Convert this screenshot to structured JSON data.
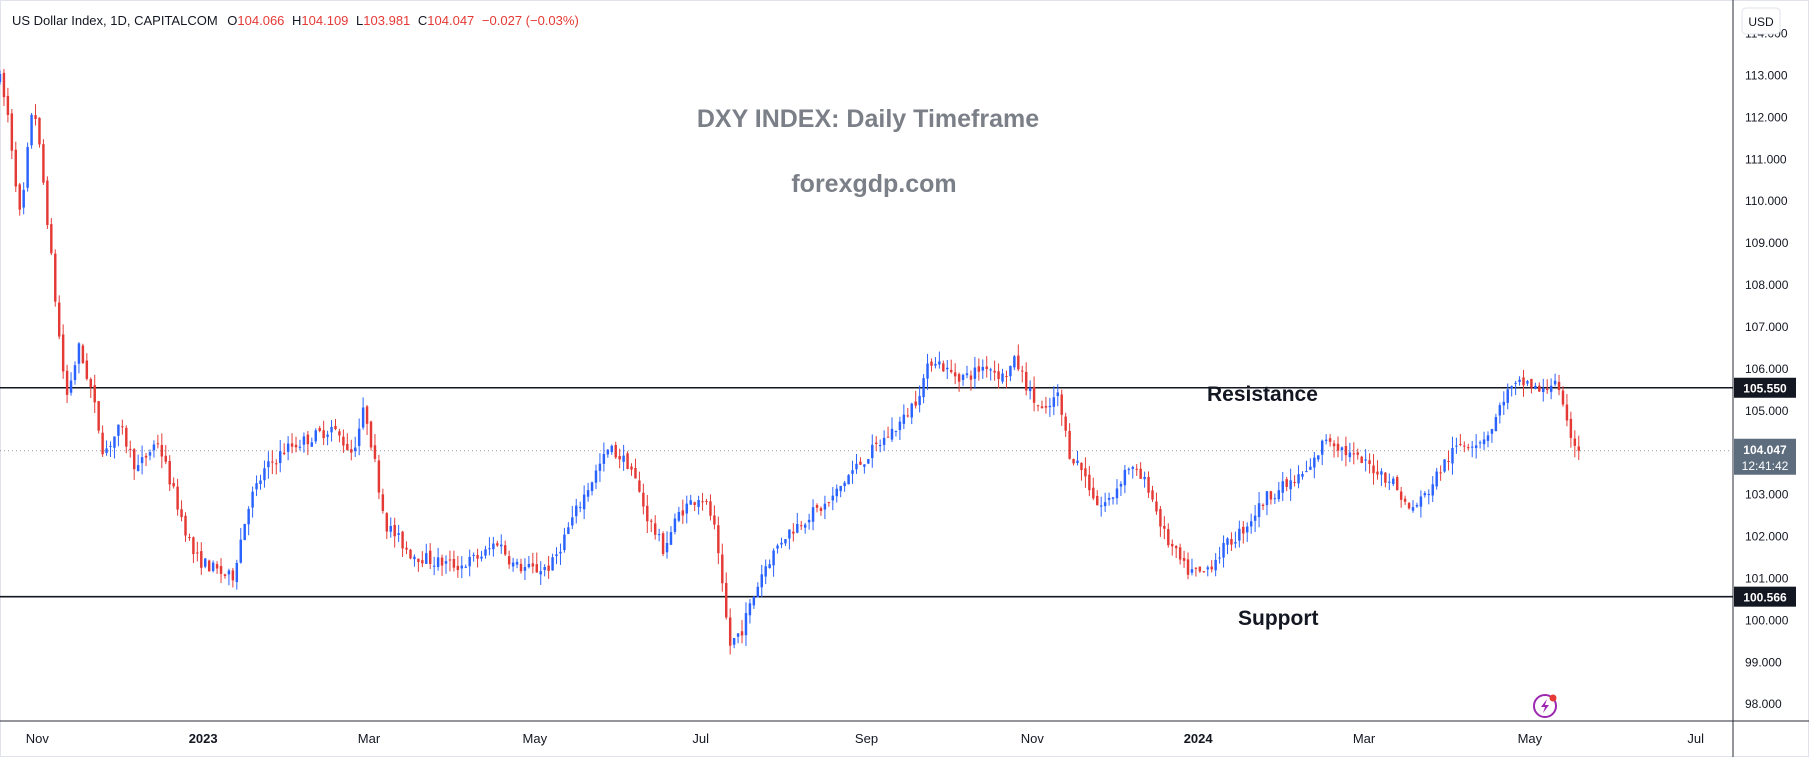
{
  "header": {
    "symbol": "US Dollar Index, 1D, CAPITALCOM",
    "o_label": "O",
    "o_value": "104.066",
    "h_label": "H",
    "h_value": "104.109",
    "l_label": "L",
    "l_value": "103.981",
    "c_label": "C",
    "c_value": "104.047",
    "change": "−0.027 (−0.03%)"
  },
  "currency_button": "USD",
  "watermark": {
    "title": "DXY INDEX: Daily Timeframe",
    "site": "forexgdp.com"
  },
  "annotations": {
    "resistance": "Resistance",
    "support": "Support"
  },
  "price_badge": {
    "price": "104.047",
    "countdown": "12:41:42"
  },
  "colors": {
    "up": "#2962ff",
    "down": "#e53935",
    "badge": "#5d6d7e",
    "level_badge": "#131722"
  },
  "icons": {
    "alert": "lightning-icon"
  },
  "chart_data": {
    "type": "candlestick",
    "title": "DXY INDEX: Daily Timeframe",
    "ylim": [
      97.6,
      114.8
    ],
    "y_ticks": [
      "98.000",
      "99.000",
      "100.000",
      "101.000",
      "102.000",
      "103.000",
      "104.000",
      "105.000",
      "106.000",
      "107.000",
      "108.000",
      "109.000",
      "110.000",
      "111.000",
      "112.000",
      "113.000",
      "114.000"
    ],
    "y_tick_values": [
      98,
      99,
      100,
      101,
      102,
      103,
      104,
      105,
      106,
      107,
      108,
      109,
      110,
      111,
      112,
      113,
      114
    ],
    "x_ticks": [
      "Nov",
      "2023",
      "Mar",
      "May",
      "Jul",
      "Sep",
      "Nov",
      "2024",
      "Mar",
      "May",
      "Jul"
    ],
    "x_tick_bold": [
      false,
      true,
      false,
      false,
      false,
      false,
      false,
      true,
      false,
      false,
      false
    ],
    "x_tick_months": [
      0,
      2,
      4,
      6,
      8,
      10,
      12,
      14,
      16,
      18,
      20
    ],
    "x_range_months": [
      -0.45,
      20.45
    ],
    "last_candle_month": 18.6,
    "levels": [
      {
        "name": "Resistance",
        "value": 105.55,
        "label": "105.550"
      },
      {
        "name": "Support",
        "value": 100.566,
        "label": "100.566"
      }
    ],
    "current_price": 104.047,
    "anchors": [
      [
        -0.45,
        112.9
      ],
      [
        -0.35,
        112.0
      ],
      [
        -0.2,
        109.5
      ],
      [
        -0.05,
        112.5
      ],
      [
        0.1,
        110.0
      ],
      [
        0.25,
        107.0
      ],
      [
        0.35,
        105.3
      ],
      [
        0.5,
        106.5
      ],
      [
        0.65,
        105.5
      ],
      [
        0.8,
        104.0
      ],
      [
        1.0,
        104.6
      ],
      [
        1.2,
        103.6
      ],
      [
        1.45,
        104.3
      ],
      [
        1.7,
        102.7
      ],
      [
        1.9,
        101.5
      ],
      [
        2.15,
        101.2
      ],
      [
        2.35,
        101.0
      ],
      [
        2.55,
        102.8
      ],
      [
        2.75,
        103.6
      ],
      [
        3.0,
        104.1
      ],
      [
        3.35,
        104.4
      ],
      [
        3.55,
        104.6
      ],
      [
        3.8,
        104.0
      ],
      [
        3.95,
        105.1
      ],
      [
        4.2,
        102.3
      ],
      [
        4.5,
        101.6
      ],
      [
        4.8,
        101.4
      ],
      [
        5.1,
        101.3
      ],
      [
        5.4,
        101.6
      ],
      [
        5.55,
        101.9
      ],
      [
        5.75,
        101.3
      ],
      [
        6.0,
        101.2
      ],
      [
        6.2,
        101.3
      ],
      [
        6.45,
        102.4
      ],
      [
        6.7,
        103.4
      ],
      [
        6.9,
        104.1
      ],
      [
        7.15,
        103.7
      ],
      [
        7.35,
        102.5
      ],
      [
        7.55,
        101.7
      ],
      [
        7.75,
        102.6
      ],
      [
        8.0,
        103.0
      ],
      [
        8.15,
        102.4
      ],
      [
        8.35,
        99.4
      ],
      [
        8.5,
        99.8
      ],
      [
        8.75,
        101.2
      ],
      [
        9.0,
        102.0
      ],
      [
        9.3,
        102.5
      ],
      [
        9.55,
        102.8
      ],
      [
        9.8,
        103.5
      ],
      [
        10.0,
        103.9
      ],
      [
        10.25,
        104.4
      ],
      [
        10.45,
        104.8
      ],
      [
        10.6,
        105.3
      ],
      [
        10.8,
        106.3
      ],
      [
        11.0,
        105.9
      ],
      [
        11.2,
        105.8
      ],
      [
        11.45,
        106.1
      ],
      [
        11.65,
        105.8
      ],
      [
        11.8,
        106.2
      ],
      [
        12.0,
        105.3
      ],
      [
        12.15,
        104.9
      ],
      [
        12.3,
        105.4
      ],
      [
        12.45,
        104.0
      ],
      [
        12.6,
        103.6
      ],
      [
        12.8,
        102.7
      ],
      [
        12.95,
        102.9
      ],
      [
        13.15,
        103.7
      ],
      [
        13.4,
        103.2
      ],
      [
        13.6,
        102.0
      ],
      [
        13.85,
        101.2
      ],
      [
        14.05,
        101.1
      ],
      [
        14.3,
        101.7
      ],
      [
        14.55,
        102.2
      ],
      [
        14.85,
        103.0
      ],
      [
        15.15,
        103.3
      ],
      [
        15.35,
        103.6
      ],
      [
        15.55,
        104.4
      ],
      [
        15.85,
        103.9
      ],
      [
        16.15,
        103.6
      ],
      [
        16.35,
        103.3
      ],
      [
        16.55,
        102.6
      ],
      [
        16.75,
        103.0
      ],
      [
        16.95,
        103.7
      ],
      [
        17.15,
        104.2
      ],
      [
        17.4,
        104.3
      ],
      [
        17.55,
        104.6
      ],
      [
        17.7,
        105.4
      ],
      [
        17.95,
        105.7
      ],
      [
        18.15,
        105.4
      ],
      [
        18.3,
        105.8
      ],
      [
        18.45,
        104.6
      ],
      [
        18.6,
        104.05
      ]
    ]
  }
}
